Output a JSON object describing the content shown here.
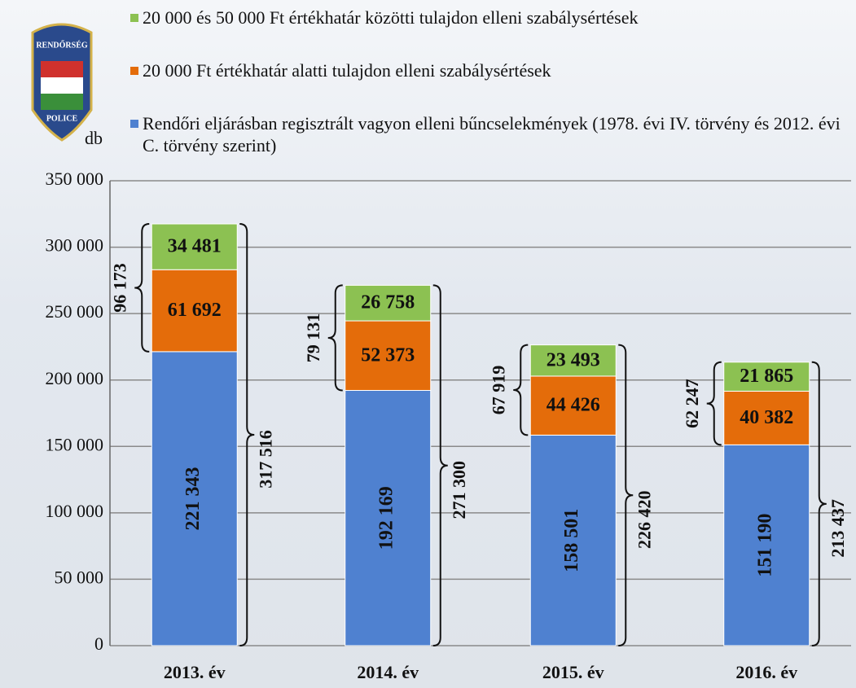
{
  "chart_data": {
    "type": "stacked_bar",
    "logo": {
      "top": "RENDŐRSÉG",
      "bottom": "POLICE"
    },
    "ylabel": "db",
    "categories": [
      "2013. év",
      "2014. év",
      "2015. év",
      "2016. év"
    ],
    "series": [
      {
        "name": "Rendőri eljárásban regisztrált vagyon elleni bűncselekmények (1978. évi IV. törvény és 2012. évi C. törvény szerint)",
        "color": "#4f81d0",
        "values": [
          221343,
          192169,
          158501,
          151190
        ],
        "value_labels": [
          "221 343",
          "192 169",
          "158 501",
          "151 190"
        ]
      },
      {
        "name": "20 000 Ft értékhatár alatti tulajdon elleni szabálysértések",
        "color": "#e46c0a",
        "values": [
          61692,
          52373,
          44426,
          40382
        ],
        "value_labels": [
          "61 692",
          "52 373",
          "44 426",
          "40 382"
        ]
      },
      {
        "name": "20 000 és 50 000 Ft értékhatár közötti tulajdon elleni szabálysértések",
        "color": "#8cc152",
        "values": [
          34481,
          26758,
          23493,
          21865
        ],
        "value_labels": [
          "34 481",
          "26 758",
          "23 493",
          "21 865"
        ]
      }
    ],
    "annotations": {
      "totals": {
        "values": [
          317516,
          271300,
          226420,
          213437
        ],
        "value_labels": [
          "317 516",
          "271 300",
          "226 420",
          "213 437"
        ]
      },
      "subtotals": {
        "values": [
          96173,
          79131,
          67919,
          62247
        ],
        "value_labels": [
          "96 173",
          "79 131",
          "67 919",
          "62 247"
        ]
      }
    },
    "ylim": [
      0,
      350000
    ],
    "yticks": [
      0,
      {
        "value": 50000,
        "label": "50 000"
      },
      {
        "value": 100000,
        "label": "100 000"
      },
      {
        "value": 150000,
        "label": "150 000"
      },
      {
        "value": 200000,
        "label": "200 000"
      },
      {
        "value": 250000,
        "label": "250 000"
      },
      {
        "value": 300000,
        "label": "300 000"
      },
      {
        "value": 350000,
        "label": "350 000"
      }
    ],
    "grid": true
  }
}
